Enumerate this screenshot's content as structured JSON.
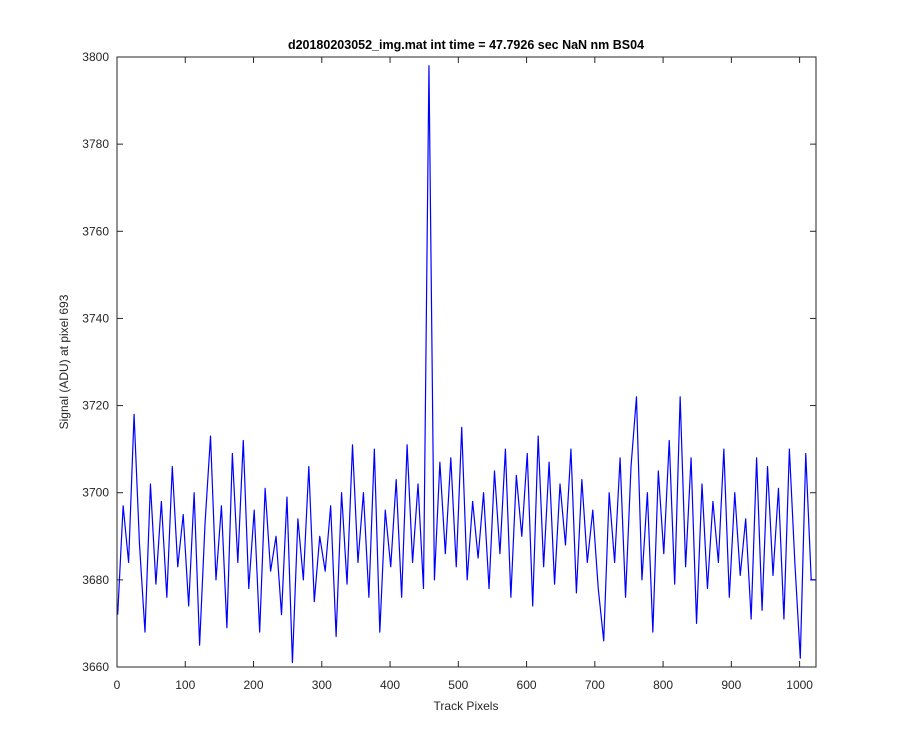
{
  "chart_data": {
    "type": "line",
    "title": "d20180203052_img.mat int time = 47.7926 sec  NaN nm BS04",
    "x_label": "Track Pixels",
    "y_label": "Signal (ADU) at pixel 693",
    "x": [
      1,
      9,
      17,
      25,
      33,
      41,
      49,
      57,
      65,
      73,
      81,
      89,
      97,
      105,
      113,
      121,
      129,
      137,
      145,
      153,
      161,
      169,
      177,
      185,
      193,
      201,
      209,
      217,
      225,
      233,
      241,
      249,
      257,
      265,
      273,
      281,
      289,
      297,
      305,
      313,
      321,
      329,
      337,
      345,
      353,
      361,
      369,
      377,
      385,
      393,
      401,
      409,
      417,
      425,
      433,
      441,
      449,
      457,
      465,
      473,
      481,
      489,
      497,
      505,
      513,
      521,
      529,
      537,
      545,
      553,
      561,
      569,
      577,
      585,
      593,
      601,
      609,
      617,
      625,
      633,
      641,
      649,
      657,
      665,
      673,
      681,
      689,
      697,
      705,
      713,
      721,
      729,
      737,
      745,
      753,
      761,
      769,
      777,
      785,
      793,
      801,
      809,
      817,
      825,
      833,
      841,
      849,
      857,
      865,
      873,
      881,
      889,
      897,
      905,
      913,
      921,
      929,
      937,
      945,
      953,
      961,
      969,
      977,
      985,
      993,
      1001,
      1009,
      1017,
      1024
    ],
    "series": [
      {
        "color": "#0000ff",
        "values": [
          3672,
          3697,
          3684,
          3718,
          3688,
          3668,
          3702,
          3679,
          3698,
          3676,
          3706,
          3683,
          3695,
          3674,
          3700,
          3665,
          3693,
          3713,
          3680,
          3697,
          3669,
          3709,
          3684,
          3712,
          3678,
          3696,
          3668,
          3701,
          3682,
          3690,
          3672,
          3699,
          3661,
          3694,
          3680,
          3706,
          3675,
          3690,
          3682,
          3697,
          3667,
          3700,
          3679,
          3711,
          3684,
          3700,
          3676,
          3710,
          3668,
          3696,
          3683,
          3703,
          3676,
          3711,
          3684,
          3702,
          3678,
          3798,
          3680,
          3707,
          3686,
          3708,
          3683,
          3715,
          3680,
          3698,
          3685,
          3700,
          3678,
          3705,
          3686,
          3710,
          3676,
          3704,
          3690,
          3709,
          3674,
          3713,
          3683,
          3707,
          3679,
          3702,
          3688,
          3710,
          3677,
          3703,
          3684,
          3696,
          3678,
          3666,
          3700,
          3684,
          3708,
          3676,
          3706,
          3722,
          3680,
          3700,
          3668,
          3705,
          3686,
          3712,
          3679,
          3722,
          3683,
          3708,
          3670,
          3702,
          3678,
          3698,
          3684,
          3710,
          3676,
          3700,
          3681,
          3694,
          3671,
          3708,
          3673,
          3706,
          3681,
          3701,
          3671,
          3710,
          3684,
          3662,
          3709,
          3680,
          3680
        ]
      }
    ],
    "xlim": [
      0,
      1024
    ],
    "ylim": [
      3660,
      3800
    ],
    "xticks": [
      0,
      100,
      200,
      300,
      400,
      500,
      600,
      700,
      800,
      900,
      1000
    ],
    "yticks": [
      3660,
      3680,
      3700,
      3720,
      3740,
      3760,
      3780,
      3800
    ],
    "grid": false
  }
}
